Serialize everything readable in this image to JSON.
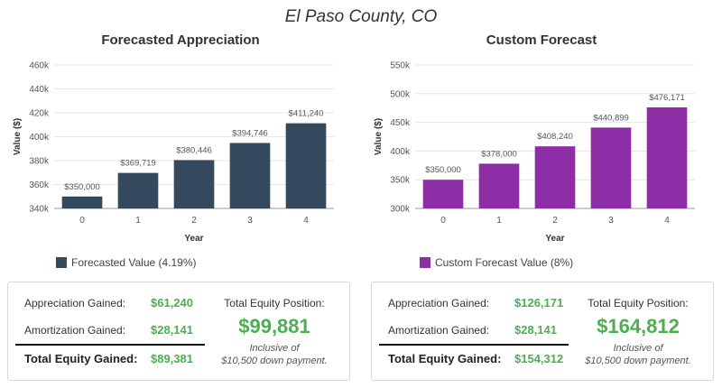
{
  "page_title": "El Paso County, CO",
  "chart_data": [
    {
      "type": "bar",
      "title": "Forecasted Appreciation",
      "xlabel": "Year",
      "ylabel": "Value ($)",
      "categories": [
        "0",
        "1",
        "2",
        "3",
        "4"
      ],
      "values": [
        350000,
        369719,
        380446,
        394746,
        411240
      ],
      "data_labels": [
        "$350,000",
        "$369,719",
        "$380,446",
        "$394,746",
        "$411,240"
      ],
      "ylim": [
        340000,
        460000
      ],
      "yticks": [
        340000,
        360000,
        380000,
        400000,
        420000,
        440000,
        460000
      ],
      "ytick_labels": [
        "340k",
        "360k",
        "380k",
        "400k",
        "420k",
        "440k",
        "460k"
      ],
      "color": "#34495e",
      "legend": "Forecasted Value (4.19%)"
    },
    {
      "type": "bar",
      "title": "Custom Forecast",
      "xlabel": "Year",
      "ylabel": "Value ($)",
      "categories": [
        "0",
        "1",
        "2",
        "3",
        "4"
      ],
      "values": [
        350000,
        378000,
        408240,
        440899,
        476171
      ],
      "data_labels": [
        "$350,000",
        "$378,000",
        "$408,240",
        "$440,899",
        "$476,171"
      ],
      "ylim": [
        300000,
        550000
      ],
      "yticks": [
        300000,
        350000,
        400000,
        450000,
        500000,
        550000
      ],
      "ytick_labels": [
        "300k",
        "350k",
        "400k",
        "450k",
        "500k",
        "550k"
      ],
      "color": "#8e2ea6",
      "legend": "Custom Forecast Value (8%)"
    }
  ],
  "summaries": [
    {
      "appreciation_label": "Appreciation Gained:",
      "appreciation_value": "$61,240",
      "amortization_label": "Amortization Gained:",
      "amortization_value": "$28,141",
      "total_label": "Total Equity Gained:",
      "total_value": "$89,381",
      "equity_title": "Total Equity Position:",
      "equity_value": "$99,881",
      "note_line1": "Inclusive of",
      "note_line2": "$10,500 down payment."
    },
    {
      "appreciation_label": "Appreciation Gained:",
      "appreciation_value": "$126,171",
      "amortization_label": "Amortization Gained:",
      "amortization_value": "$28,141",
      "total_label": "Total Equity Gained:",
      "total_value": "$154,312",
      "equity_title": "Total Equity Position:",
      "equity_value": "$164,812",
      "note_line1": "Inclusive of",
      "note_line2": "$10,500 down payment."
    }
  ]
}
